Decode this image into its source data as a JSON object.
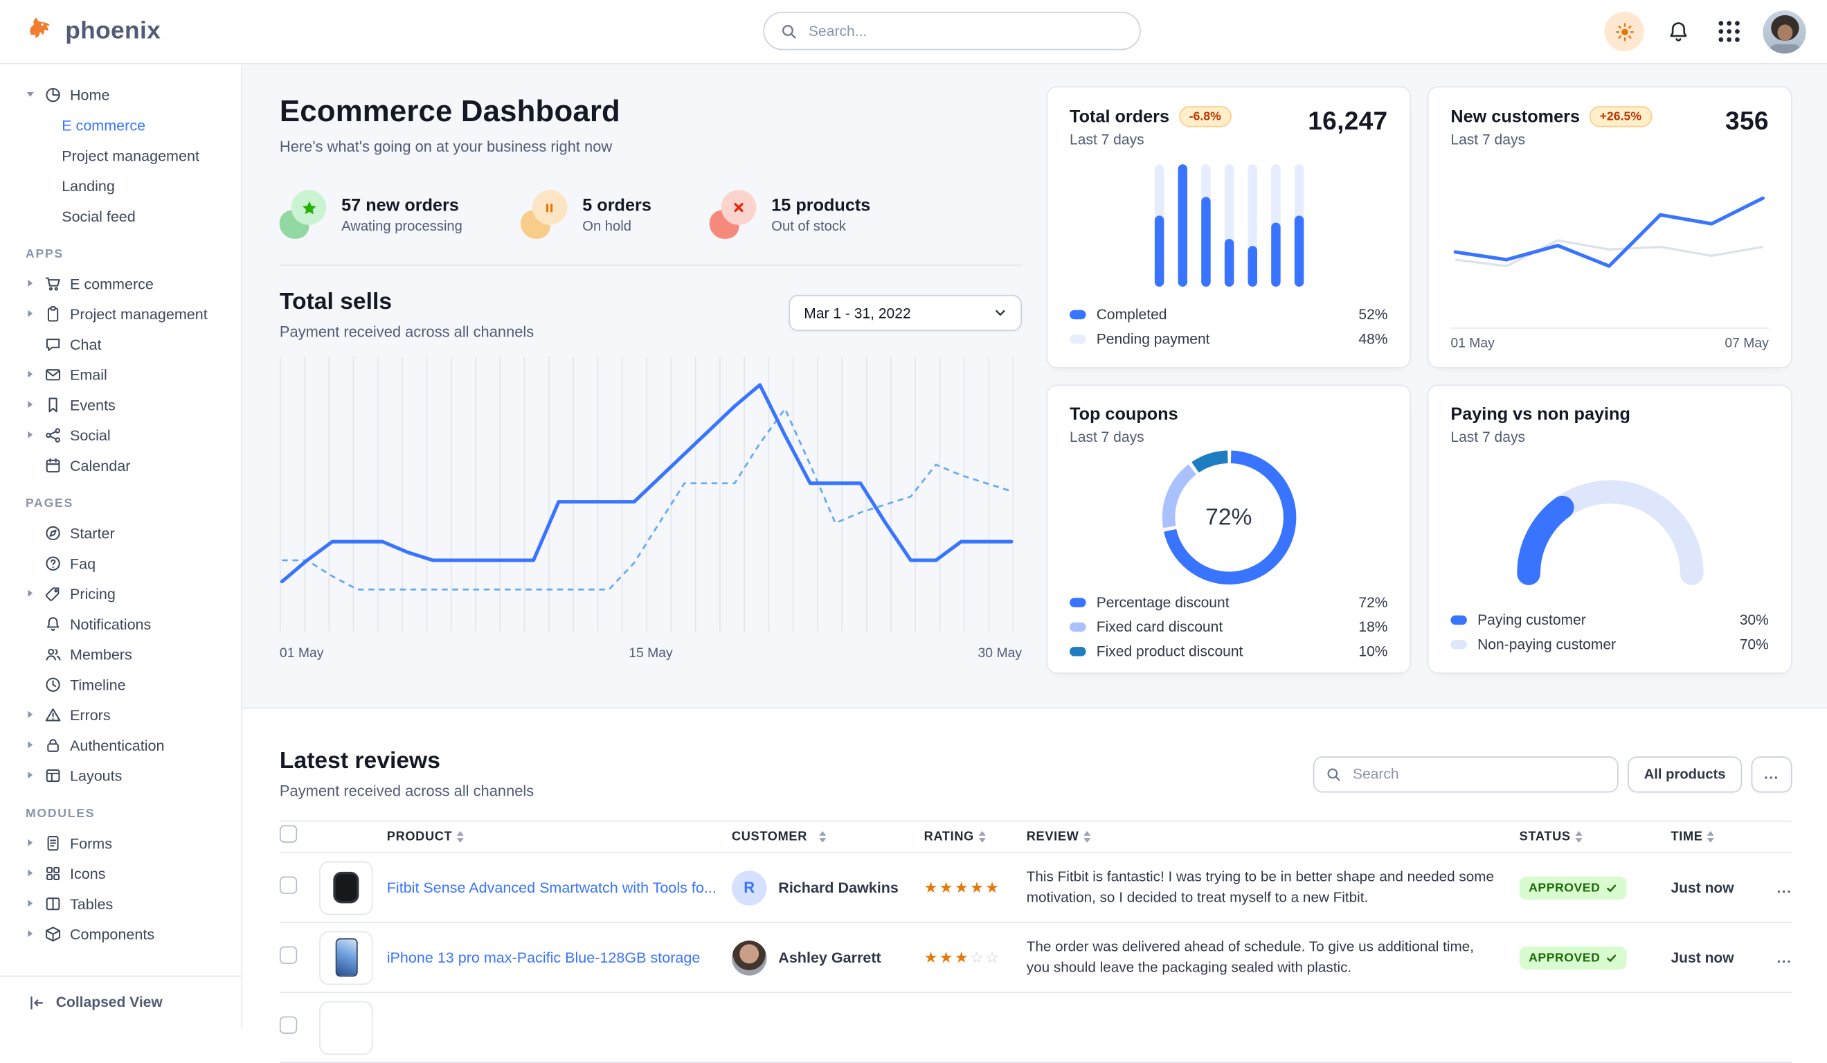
{
  "navbar": {
    "logo_text": "phoenix",
    "search_placeholder": "Search..."
  },
  "sidebar": {
    "collapsed_view_label": "Collapsed View",
    "sections": [
      {
        "label": "",
        "items": [
          {
            "label": "Home",
            "icon": "pie",
            "caret": "down",
            "children": [
              {
                "label": "E commerce",
                "active": true
              },
              {
                "label": "Project management"
              },
              {
                "label": "Landing"
              },
              {
                "label": "Social feed"
              }
            ]
          }
        ]
      },
      {
        "label": "APPS",
        "items": [
          {
            "label": "E commerce",
            "icon": "cart",
            "caret": "right"
          },
          {
            "label": "Project management",
            "icon": "clipboard",
            "caret": "right"
          },
          {
            "label": "Chat",
            "icon": "chat"
          },
          {
            "label": "Email",
            "icon": "mail",
            "caret": "right"
          },
          {
            "label": "Events",
            "icon": "bookmark",
            "caret": "right"
          },
          {
            "label": "Social",
            "icon": "share",
            "caret": "right"
          },
          {
            "label": "Calendar",
            "icon": "calendar"
          }
        ]
      },
      {
        "label": "PAGES",
        "items": [
          {
            "label": "Starter",
            "icon": "compass"
          },
          {
            "label": "Faq",
            "icon": "question"
          },
          {
            "label": "Pricing",
            "icon": "tag",
            "caret": "right"
          },
          {
            "label": "Notifications",
            "icon": "bell"
          },
          {
            "label": "Members",
            "icon": "users"
          },
          {
            "label": "Timeline",
            "icon": "clock"
          },
          {
            "label": "Errors",
            "icon": "warning",
            "caret": "right"
          },
          {
            "label": "Authentication",
            "icon": "lock",
            "caret": "right"
          },
          {
            "label": "Layouts",
            "icon": "layout",
            "caret": "right"
          }
        ]
      },
      {
        "label": "MODULES",
        "items": [
          {
            "label": "Forms",
            "icon": "form",
            "caret": "right"
          },
          {
            "label": "Icons",
            "icon": "grid",
            "caret": "right"
          },
          {
            "label": "Tables",
            "icon": "table",
            "caret": "right"
          },
          {
            "label": "Components",
            "icon": "box",
            "caret": "right"
          }
        ]
      }
    ]
  },
  "header": {
    "title": "Ecommerce Dashboard",
    "subtitle": "Here's what's going on at your business right now",
    "stats": [
      {
        "value_label": "57 new orders",
        "caption": "Awating processing",
        "icon": "star",
        "glyph_color": "#25b003",
        "ring_color": "#c9f3d1",
        "blob_color": "#93d8a2"
      },
      {
        "value_label": "5 orders",
        "caption": "On hold",
        "icon": "pause",
        "glyph_color": "#e5780b",
        "ring_color": "#fbe5c5",
        "blob_color": "#f8cd8a"
      },
      {
        "value_label": "15 products",
        "caption": "Out of stock",
        "icon": "x",
        "glyph_color": "#ed2000",
        "ring_color": "#fcd3cd",
        "blob_color": "#f5897b"
      }
    ]
  },
  "total_sells": {
    "title": "Total sells",
    "subtitle": "Payment received across all channels",
    "date_range": "Mar 1 - 31, 2022",
    "x_labels": [
      "01 May",
      "15 May",
      "30 May"
    ]
  },
  "cards": {
    "total_orders": {
      "title": "Total orders",
      "badge": "-6.8%",
      "period": "Last 7 days",
      "value": "16,247",
      "legend": [
        {
          "label": "Completed",
          "value": "52%",
          "color": "#3874ff"
        },
        {
          "label": "Pending payment",
          "value": "48%",
          "color": "#e5edff"
        }
      ]
    },
    "new_customers": {
      "title": "New customers",
      "badge": "+26.5%",
      "period": "Last 7 days",
      "value": "356",
      "x_labels": [
        "01 May",
        "07 May"
      ]
    },
    "top_coupons": {
      "title": "Top coupons",
      "period": "Last 7 days",
      "center_label": "72%",
      "legend": [
        {
          "label": "Percentage discount",
          "value": "72%",
          "color": "#3874ff"
        },
        {
          "label": "Fixed card discount",
          "value": "18%",
          "color": "#a9c1ff"
        },
        {
          "label": "Fixed product discount",
          "value": "10%",
          "color": "#1e7dc0"
        }
      ]
    },
    "paying": {
      "title": "Paying vs non paying",
      "period": "Last 7 days",
      "legend": [
        {
          "label": "Paying customer",
          "value": "30%",
          "color": "#3874ff"
        },
        {
          "label": "Non-paying customer",
          "value": "70%",
          "color": "#dde6fb"
        }
      ]
    }
  },
  "reviews": {
    "title": "Latest reviews",
    "subtitle": "Payment received across all channels",
    "search_placeholder": "Search",
    "filter_button": "All products",
    "more_button": "...",
    "row_more": "...",
    "columns": [
      "PRODUCT",
      "CUSTOMER",
      "RATING",
      "REVIEW",
      "STATUS",
      "TIME"
    ],
    "rows": [
      {
        "thumb": "watch",
        "product": "Fitbit Sense Advanced Smartwatch with Tools fo...",
        "customer": "Richard Dawkins",
        "avatar_type": "initial",
        "avatar_initial": "R",
        "rating": 5,
        "review": "This Fitbit is fantastic! I was trying to be in better shape and needed some motivation, so I decided to treat myself to a new Fitbit.",
        "status": "APPROVED",
        "time": "Just now"
      },
      {
        "thumb": "phone",
        "product": "iPhone 13 pro max-Pacific Blue-128GB storage",
        "customer": "Ashley Garrett",
        "avatar_type": "photo",
        "avatar_initial": "",
        "rating": 3,
        "review": "The order was delivered ahead of schedule. To give us additional time, you should leave the packaging sealed with plastic.",
        "status": "APPROVED",
        "time": "Just now"
      },
      {
        "thumb": "blank",
        "product": "",
        "customer": "",
        "avatar_type": "none",
        "avatar_initial": "",
        "rating": 0,
        "review": "",
        "status": "",
        "time": "",
        "partial": true
      }
    ]
  },
  "chart_data": [
    {
      "id": "total_sells",
      "type": "line",
      "title": "Total sells",
      "x": [
        1,
        2,
        3,
        4,
        5,
        6,
        7,
        8,
        9,
        10,
        11,
        12,
        13,
        14,
        15,
        16,
        17,
        18,
        19,
        20,
        21,
        22,
        23,
        24,
        25,
        26,
        27,
        28,
        29,
        30
      ],
      "x_tick_labels": [
        "01 May",
        "15 May",
        "30 May"
      ],
      "ylim": [
        0,
        100
      ],
      "grid": "vertical-daily",
      "legend_position": "none",
      "series": [
        {
          "name": "current-period",
          "style": "solid",
          "values": [
            18,
            26,
            33,
            33,
            33,
            29,
            26,
            26,
            26,
            26,
            26,
            48,
            48,
            48,
            48,
            57,
            66,
            75,
            84,
            92,
            73,
            55,
            55,
            55,
            40,
            26,
            26,
            33,
            33,
            33
          ]
        },
        {
          "name": "previous-period",
          "style": "dashed",
          "values": [
            26,
            26,
            20,
            15,
            15,
            15,
            15,
            15,
            15,
            15,
            15,
            15,
            15,
            15,
            25,
            40,
            55,
            55,
            55,
            70,
            83,
            62,
            40,
            44,
            47,
            50,
            62,
            58,
            55,
            52
          ]
        }
      ]
    },
    {
      "id": "total_orders",
      "type": "bar",
      "categories": [
        "d1",
        "d2",
        "d3",
        "d4",
        "d5",
        "d6",
        "d7"
      ],
      "values": [
        58,
        100,
        73,
        39,
        33,
        52,
        58
      ],
      "note": "blue fill = completed share per day; light full-height track = pending",
      "split": {
        "Completed": 52,
        "Pending payment": 48
      }
    },
    {
      "id": "new_customers",
      "type": "line",
      "x_tick_labels": [
        "01 May",
        "07 May"
      ],
      "ylim": [
        0,
        100
      ],
      "series": [
        {
          "name": "current",
          "values": [
            38,
            32,
            43,
            27,
            67,
            60,
            80
          ]
        },
        {
          "name": "previous",
          "values": [
            32,
            27,
            47,
            40,
            42,
            35,
            42
          ]
        }
      ]
    },
    {
      "id": "top_coupons",
      "type": "pie",
      "categories": [
        "Percentage discount",
        "Fixed card discount",
        "Fixed product discount"
      ],
      "values": [
        72,
        18,
        10
      ],
      "center_label": "72%"
    },
    {
      "id": "paying_vs_non_paying",
      "type": "pie",
      "variant": "half-gauge",
      "categories": [
        "Paying customer",
        "Non-paying customer"
      ],
      "values": [
        30,
        70
      ]
    }
  ],
  "colors": {
    "primary": "#3874ff",
    "primary_subtle": "#e5edff",
    "dashed_line": "#64a9f5",
    "gray_line": "#dde2eb",
    "coupon_light": "#a9c1ff",
    "coupon_dark": "#1e7dc0",
    "gauge_track": "#dde6fb",
    "grid_line": "#e3e6ed",
    "star": "#e5780b",
    "star_empty": "#c6ccda",
    "success_bg": "#d9fbd0",
    "success_text": "#1c6c09",
    "warning_bg": "#ffefca",
    "warning_text": "#bc3803"
  }
}
